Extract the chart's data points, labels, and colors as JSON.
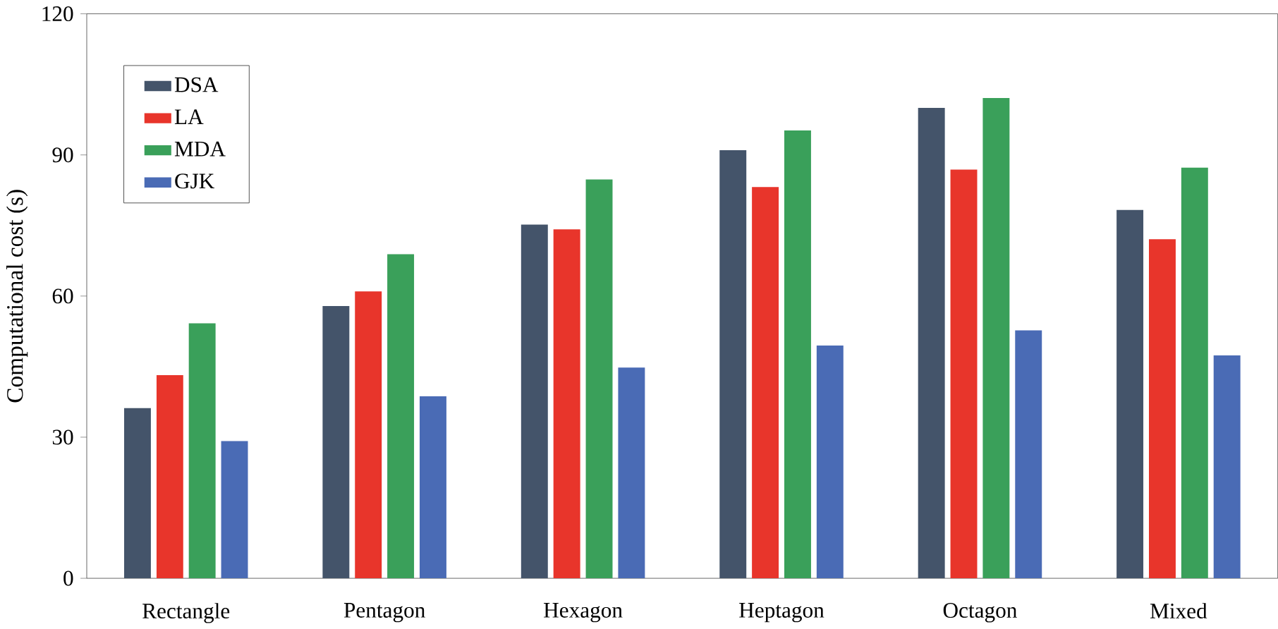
{
  "chart_data": {
    "type": "bar",
    "ylabel": "Computational cost (s)",
    "categories": [
      "Rectangle",
      "Pentagon",
      "Hexagon",
      "Heptagon",
      "Octagon",
      "Mixed"
    ],
    "series": [
      {
        "name": "DSA",
        "color": "#44546a",
        "values": [
          36,
          57.7,
          75,
          90.8,
          99.8,
          78.1
        ]
      },
      {
        "name": "LA",
        "color": "#e8352b",
        "values": [
          43,
          60.8,
          74,
          83,
          86.7,
          71.9
        ]
      },
      {
        "name": "MDA",
        "color": "#3aa05a",
        "values": [
          54,
          68.7,
          84.6,
          95,
          101.9,
          87.1
        ]
      },
      {
        "name": "GJK",
        "color": "#4a6bb5",
        "values": [
          29,
          38.5,
          44.6,
          49.3,
          52.5,
          47.2
        ]
      }
    ],
    "ylim": [
      0,
      120
    ],
    "yticks": [
      0,
      30,
      60,
      90,
      120
    ],
    "grid": false,
    "legend": "top left"
  }
}
